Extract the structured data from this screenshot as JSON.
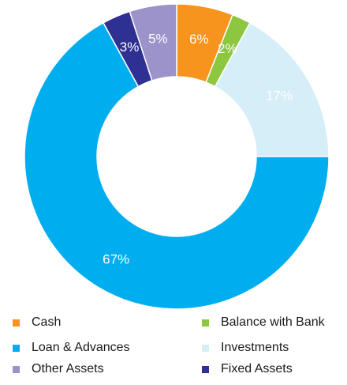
{
  "chart_data": {
    "type": "pie",
    "donut": true,
    "title": "",
    "start_angle_deg": 0,
    "direction": "clockwise",
    "slices": [
      {
        "name": "Cash",
        "value": 6,
        "label": "6%",
        "color": "#f7941d"
      },
      {
        "name": "Balance with Bank",
        "value": 2,
        "label": "2%",
        "color": "#8dc63f"
      },
      {
        "name": "Investments",
        "value": 17,
        "label": "17%",
        "color": "#d6eef7"
      },
      {
        "name": "Loan & Advances",
        "value": 67,
        "label": "67%",
        "color": "#00aeef"
      },
      {
        "name": "Fixed Assets",
        "value": 3,
        "label": "3%",
        "color": "#2e3192"
      },
      {
        "name": "Other Assets",
        "value": 5,
        "label": "5%",
        "color": "#9b93c9"
      }
    ],
    "legend": {
      "placement": "bottom",
      "columns": [
        [
          "Cash",
          "Loan & Advances",
          "Other Assets"
        ],
        [
          "Balance with Bank",
          "Investments",
          "Fixed Assets"
        ]
      ]
    }
  }
}
